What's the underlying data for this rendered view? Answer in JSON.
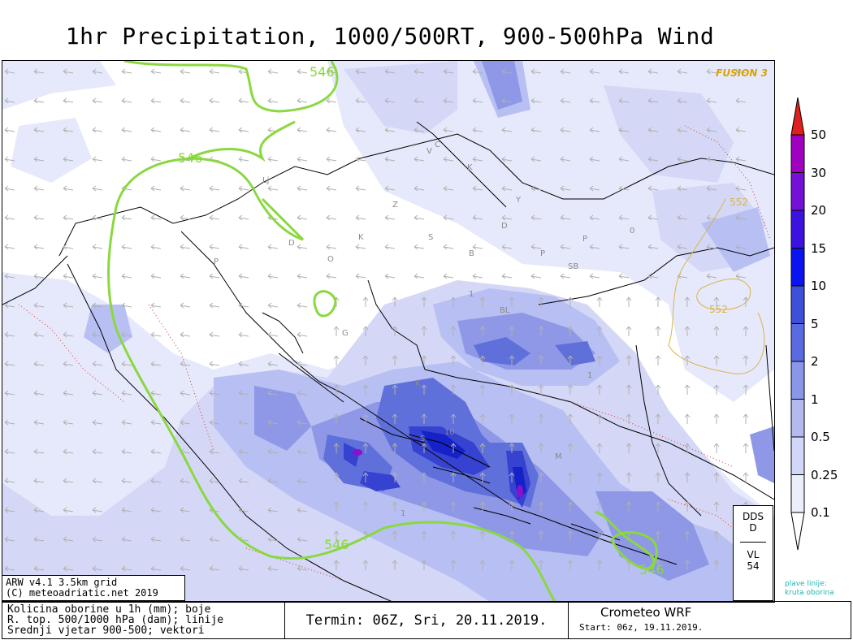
{
  "title": "1hr Precipitation, 1000/500RT, 900-500hPa Wind",
  "brand": "FUSION 3",
  "contour_labels": {
    "c546_top": "546",
    "c546_left": "546",
    "c546_bottom": "546",
    "c546_right": "546",
    "c552_upper": "552",
    "c552_lower": "552"
  },
  "map_labels": [
    "Lj",
    "D",
    "Z",
    "O",
    "P",
    "K",
    "S",
    "B",
    "V",
    "C",
    "K",
    "Y",
    "D",
    "P",
    "SB",
    "BL",
    "K",
    "S",
    "M",
    "G",
    "P",
    "0",
    "10",
    "1",
    "1",
    "1"
  ],
  "legend": {
    "labels": [
      "50",
      "30",
      "20",
      "15",
      "10",
      "5",
      "2",
      "1",
      "0.5",
      "0.25",
      "0.1"
    ],
    "colors": [
      "#e0201e",
      "#a000c0",
      "#7410d8",
      "#3c12e0",
      "#0a14f0",
      "#3c50d8",
      "#5a6ae0",
      "#8a96e8",
      "#b2baf0",
      "#d2d6f8",
      "#eceefc",
      "#ffffff"
    ]
  },
  "info_box": {
    "line1": "ARW v4.1 3.5km grid",
    "line2": "(C) meteoadriatic.net 2019"
  },
  "side_box": {
    "top1": "DDS",
    "top2": "D",
    "bot1": "VL",
    "bot2": "54"
  },
  "plave": {
    "line1": "plave linije:",
    "line2": "kruta oborina"
  },
  "bottom": {
    "left1": "Kolicina oborine u 1h (mm); boje",
    "left2": "R. top. 500/1000 hPa (dam); linije",
    "left3": "Srednji vjetar 900-500; vektori",
    "mid": "Termin: 06Z, Sri, 20.11.2019.",
    "right1": "Crometeo WRF",
    "right2": "Start: 06z, 19.11.2019."
  }
}
